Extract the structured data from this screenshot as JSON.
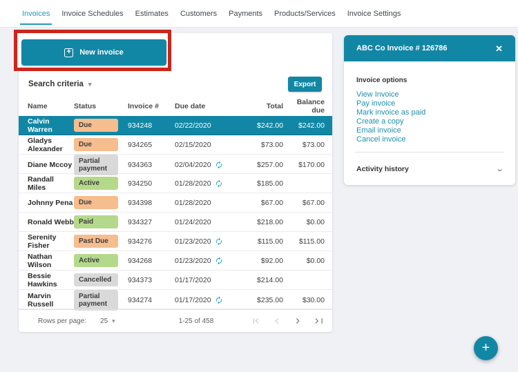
{
  "colors": {
    "accent": "#1287a5",
    "nav_active": "#1e9cba",
    "highlight_red": "#cb251c",
    "badge_orange": "#f6bd8e",
    "badge_green": "#b5d98b",
    "badge_gray": "#d9d9d9"
  },
  "nav": {
    "tabs": [
      {
        "label": "Invoices",
        "active": true
      },
      {
        "label": "Invoice Schedules",
        "active": false
      },
      {
        "label": "Estimates",
        "active": false
      },
      {
        "label": "Customers",
        "active": false
      },
      {
        "label": "Payments",
        "active": false
      },
      {
        "label": "Products/Services",
        "active": false
      },
      {
        "label": "Invoice Settings",
        "active": false
      }
    ]
  },
  "toolbar": {
    "new_invoice_label": "New invoice",
    "new_invoice_icon": "plus-box-icon",
    "search_criteria_label": "Search criteria",
    "export_label": "Export"
  },
  "table": {
    "columns": [
      {
        "label": "Name",
        "align": "left"
      },
      {
        "label": "Status",
        "align": "left"
      },
      {
        "label": "Invoice #",
        "align": "left"
      },
      {
        "label": "Due date",
        "align": "left"
      },
      {
        "label": "Total",
        "align": "right"
      },
      {
        "label": "Balance due",
        "align": "right"
      }
    ],
    "rows": [
      {
        "name": "Calvin Warren",
        "status": "Due",
        "variant": "orange",
        "invoice": "934248",
        "due_date": "02/22/2020",
        "recurring": false,
        "total": "$242.00",
        "balance": "$242.00",
        "selected": true
      },
      {
        "name": "Gladys Alexander",
        "status": "Due",
        "variant": "orange",
        "invoice": "934265",
        "due_date": "02/15/2020",
        "recurring": false,
        "total": "$73.00",
        "balance": "$73.00",
        "selected": false
      },
      {
        "name": "Diane Mccoy",
        "status": "Partial payment",
        "variant": "gray",
        "invoice": "934363",
        "due_date": "02/04/2020",
        "recurring": true,
        "total": "$257.00",
        "balance": "$170.00",
        "selected": false
      },
      {
        "name": "Randall Miles",
        "status": "Active",
        "variant": "green",
        "invoice": "934250",
        "due_date": "01/28/2020",
        "recurring": true,
        "total": "$185.00",
        "balance": "",
        "selected": false
      },
      {
        "name": "Johnny Pena",
        "status": "Due",
        "variant": "orange",
        "invoice": "934398",
        "due_date": "01/28/2020",
        "recurring": false,
        "total": "$67.00",
        "balance": "$67.00",
        "selected": false
      },
      {
        "name": "Ronald Webb",
        "status": "Paid",
        "variant": "green",
        "invoice": "934327",
        "due_date": "01/24/2020",
        "recurring": false,
        "total": "$218.00",
        "balance": "$0.00",
        "selected": false
      },
      {
        "name": "Serenity Fisher",
        "status": "Past Due",
        "variant": "orange",
        "invoice": "934276",
        "due_date": "01/23/2020",
        "recurring": true,
        "total": "$115.00",
        "balance": "$115.00",
        "selected": false
      },
      {
        "name": "Nathan Wilson",
        "status": "Active",
        "variant": "green",
        "invoice": "934268",
        "due_date": "01/23/2020",
        "recurring": true,
        "total": "$92.00",
        "balance": "$0.00",
        "selected": false
      },
      {
        "name": "Bessie Hawkins",
        "status": "Cancelled",
        "variant": "gray",
        "invoice": "934373",
        "due_date": "01/17/2020",
        "recurring": false,
        "total": "$214.00",
        "balance": "",
        "selected": false
      },
      {
        "name": "Marvin Russell",
        "status": "Partial payment",
        "variant": "gray",
        "invoice": "934274",
        "due_date": "01/17/2020",
        "recurring": true,
        "total": "$235.00",
        "balance": "$30.00",
        "selected": false
      }
    ]
  },
  "pagination": {
    "rows_per_page_label": "Rows per page:",
    "rows_per_page_value": "25",
    "range_label": "1-25 of 458"
  },
  "panel": {
    "title": "ABC Co Invoice # 126786",
    "close_icon": "close-icon",
    "options_heading": "Invoice options",
    "links": [
      "View Invoice",
      "Pay invoice",
      "Mark invoice as paid",
      "Create a copy",
      "Email invoice",
      "Cancel invoice"
    ],
    "activity_heading": "Activity history"
  },
  "fab": {
    "icon": "plus-icon"
  }
}
